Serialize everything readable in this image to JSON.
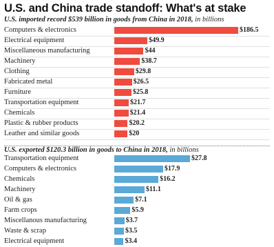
{
  "title": "U.S. and China trade standoff: What's at stake",
  "imports_subtitle": {
    "main": "U.S. imported record $539 billion in goods from China in 2018,",
    "unit": " in billions"
  },
  "exports_subtitle": {
    "main": "U.S. exported $120.3 billion in goods to China in 2018,",
    "unit": " in billions"
  },
  "colors": {
    "imports": "#f04b3f",
    "exports": "#5aa9d6"
  },
  "chart_data": [
    {
      "type": "bar",
      "orientation": "horizontal",
      "title": "U.S. imported record $539 billion in goods from China in 2018, in billions",
      "categories": [
        "Computers & electronics",
        "Electrical equipment",
        "Miscellaneous manufacturing",
        "Machinery",
        "Clothing",
        "Fabricated metal",
        "Furniture",
        "Transportation equipment",
        "Chemicals",
        "Plastic & rubber products",
        "Leather and similar goods"
      ],
      "values": [
        186.5,
        49.9,
        44,
        38.7,
        29.8,
        26.5,
        25.8,
        21.7,
        21.4,
        20.2,
        20
      ],
      "labels": [
        "$186.5",
        "$49.9",
        "$44",
        "$38.7",
        "$29.8",
        "$26.5",
        "$25.8",
        "$21.7",
        "$21.4",
        "$20.2",
        "$20"
      ],
      "color": "#f04b3f",
      "grid": false
    },
    {
      "type": "bar",
      "orientation": "horizontal",
      "title": "U.S. exported $120.3 billion in goods to China in 2018, in billions",
      "categories": [
        "Transportation equipment",
        "Computers & electronics",
        "Chemicals",
        "Machinery",
        "Oil & gas",
        "Farm crops",
        "Miscellanous manufacturing",
        "Waste & scrap",
        "Electrical equipment"
      ],
      "values": [
        27.8,
        17.9,
        16.2,
        11.1,
        7.1,
        5.9,
        3.7,
        3.5,
        3.4
      ],
      "labels": [
        "$27.8",
        "$17.9",
        "$16.2",
        "$11.1",
        "$7.1",
        "$5.9",
        "$3.7",
        "$3.5",
        "$3.4"
      ],
      "color": "#5aa9d6",
      "grid": false
    }
  ]
}
